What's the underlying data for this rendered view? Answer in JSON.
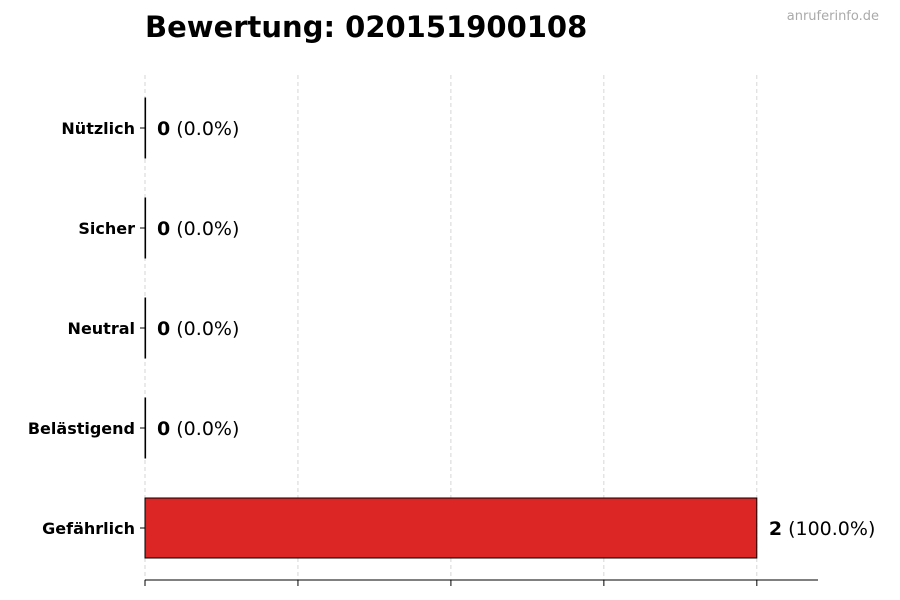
{
  "chart_data": {
    "type": "bar",
    "orientation": "horizontal",
    "title": "Bewertung: 020151900108",
    "watermark": "anruferinfo.de",
    "categories": [
      "Nützlich",
      "Sicher",
      "Neutral",
      "Belästigend",
      "Gefährlich"
    ],
    "values": [
      0,
      0,
      0,
      0,
      2
    ],
    "percent_labels": [
      "(0.0%)",
      "(0.0%)",
      "(0.0%)",
      "(0.0%)",
      "(100.0%)"
    ],
    "xlim": [
      0,
      2.2
    ],
    "xticks": [
      0,
      0.5,
      1,
      1.5,
      2
    ],
    "xtick_labels_shown": false,
    "grid": "x-dashed",
    "bar_color": "#dc2626",
    "edge_color": "#000000"
  }
}
